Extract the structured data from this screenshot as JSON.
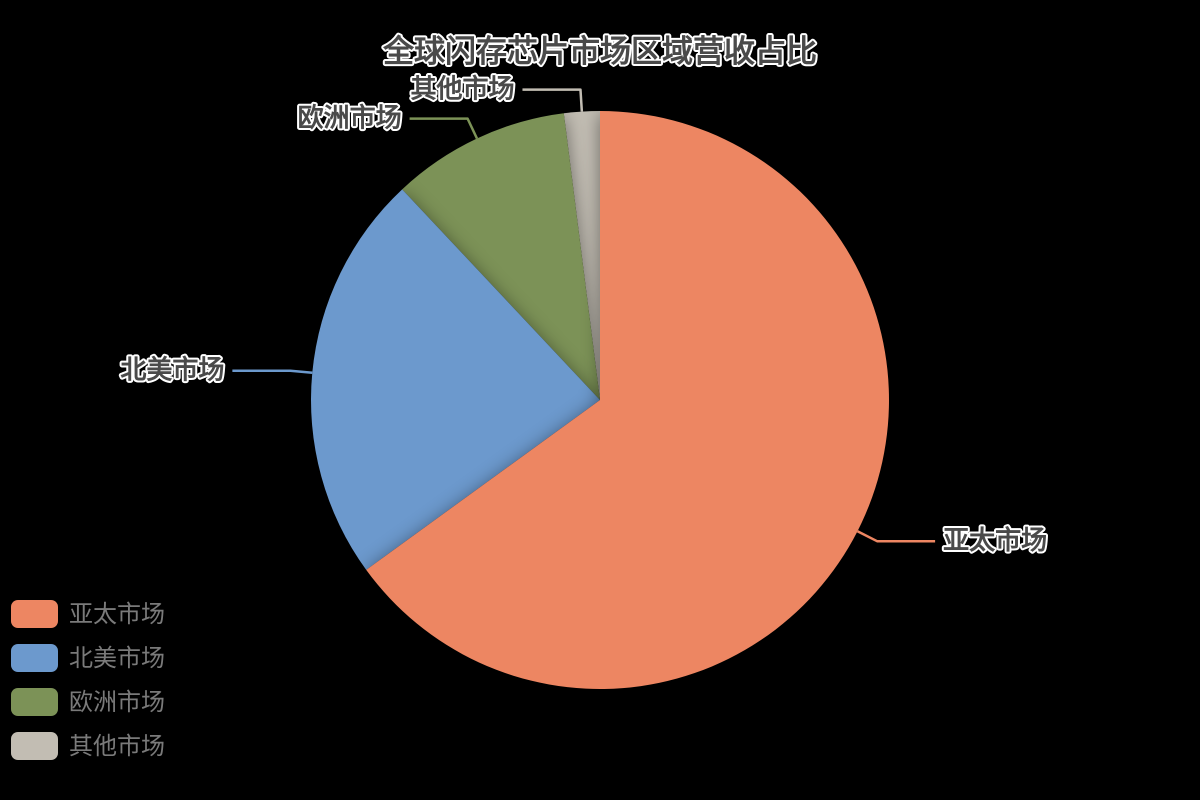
{
  "background_color": "#000000",
  "chart_data": {
    "type": "pie",
    "title": "全球闪存芯片市场区域营收占比",
    "categories": [
      "亚太市场",
      "北美市场",
      "欧洲市场",
      "其他市场"
    ],
    "values": [
      65,
      23,
      10,
      2
    ],
    "values_estimated_from_angles": true,
    "colors": [
      "#ED8662",
      "#6C99CD",
      "#7C9257",
      "#C2BDB3"
    ],
    "start_angle": 90,
    "direction": "clockwise",
    "labels": "outside-leader-lines",
    "label_text_color": "#4a4a4a",
    "label_outline_color": "#ffffff",
    "title_text_color": "#4a4a4a",
    "legend_position": "bottom-left",
    "legend_text_color": "#7a7a7a",
    "grid": false
  }
}
